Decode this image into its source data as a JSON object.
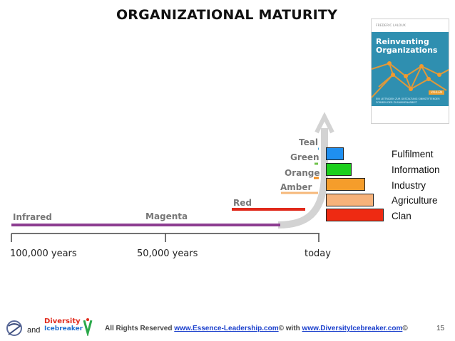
{
  "title": "ORGANIZATIONAL MATURITY",
  "book": {
    "author": "FREDERIC LALOUX",
    "title_line1": "Reinventing",
    "title_line2": "Organizations",
    "publisher": "VAHLEN",
    "subtitle": "EIN LEITFADEN ZUR GESTALTUNG SINNSTIFTENDER FORMEN DER ZUSAMMENARBEIT"
  },
  "timeline": {
    "ticks": [
      "100,000 years",
      "50,000 years",
      "today"
    ],
    "stages": [
      {
        "name": "Infrared",
        "color": "#7a3b7a"
      },
      {
        "name": "Magenta",
        "color": "#9b3aa8"
      },
      {
        "name": "Red",
        "color": "#e0291b"
      },
      {
        "name": "Amber",
        "color": "#f2a14e"
      },
      {
        "name": "Orange",
        "color": "#f28c1e"
      },
      {
        "name": "Green",
        "color": "#6fc24a"
      },
      {
        "name": "Teal",
        "color": "#3aa0d9"
      }
    ]
  },
  "legend": [
    {
      "label": "Fulfilment",
      "color": "#1f8ff0"
    },
    {
      "label": "Information",
      "color": "#1ccf1c"
    },
    {
      "label": "Industry",
      "color": "#f59d2b"
    },
    {
      "label": "Agriculture",
      "color": "#f7b27a"
    },
    {
      "label": "Clan",
      "color": "#ee2a12"
    }
  ],
  "footer": {
    "and": "and",
    "diversity_logo_line1": "Diversity",
    "diversity_logo_line2": "Icebreaker",
    "rights_prefix": "All Rights Reserved ",
    "link1": "www.Essence-Leadership.com",
    "mid": "© with ",
    "link2": "www.DiversityIcebreaker.com",
    "suffix": "©",
    "page": "15"
  }
}
